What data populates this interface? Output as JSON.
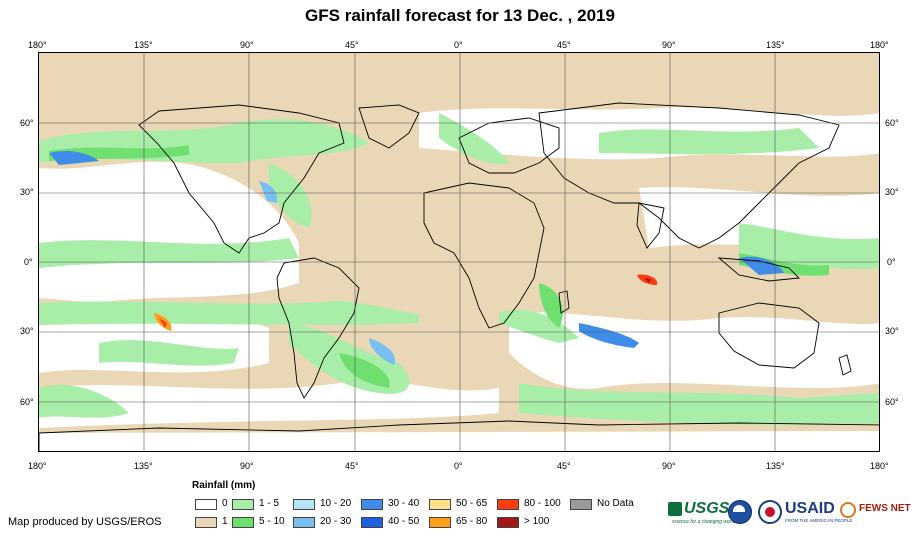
{
  "title": "GFS rainfall forecast for 13 Dec. , 2019",
  "lon_labels": [
    "180°",
    "135°",
    "90°",
    "45°",
    "0°",
    "45°",
    "90°",
    "135°",
    "180°"
  ],
  "lat_labels": [
    "60°",
    "30°",
    "0°",
    "30°",
    "60°"
  ],
  "legend": {
    "title": "Rainfall (mm)",
    "items": [
      {
        "label": "0",
        "color": "#ffffff"
      },
      {
        "label": "1",
        "color": "#ead7b5"
      },
      {
        "label": "1 - 5",
        "color": "#a8eea8"
      },
      {
        "label": "5 - 10",
        "color": "#6fe06f"
      },
      {
        "label": "10 - 20",
        "color": "#b5e6f7"
      },
      {
        "label": "20 - 30",
        "color": "#79c0f2"
      },
      {
        "label": "30 - 40",
        "color": "#3f8de8"
      },
      {
        "label": "40 - 50",
        "color": "#1f5fe0"
      },
      {
        "label": "50 - 65",
        "color": "#ffe08a"
      },
      {
        "label": "65 - 80",
        "color": "#ff9f1a"
      },
      {
        "label": "80 - 100",
        "color": "#ff3b10"
      },
      {
        "label": "> 100",
        "color": "#a01818"
      },
      {
        "label": "No Data",
        "color": "#9a9a9a"
      }
    ]
  },
  "credit": "Map produced by USGS/EROS",
  "logos": {
    "usgs": "USGS",
    "usgs_tagline": "science for a changing world",
    "usaid": "USAID",
    "usaid_tagline": "FROM THE AMERICAN PEOPLE",
    "fews": "FEWS NET"
  }
}
